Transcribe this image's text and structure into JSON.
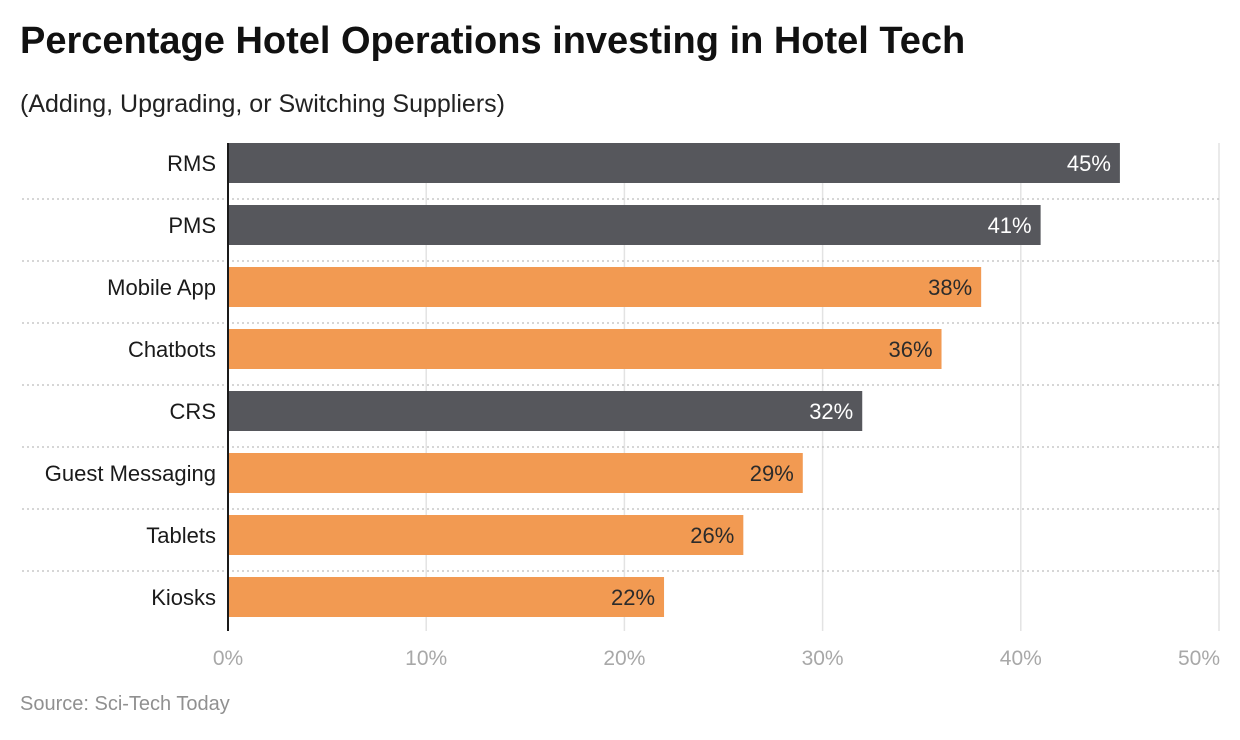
{
  "chart_data": {
    "type": "bar",
    "orientation": "horizontal",
    "title": "Percentage Hotel Operations investing in Hotel Tech",
    "subtitle": "(Adding, Upgrading, or Switching Suppliers)",
    "categories": [
      "RMS",
      "PMS",
      "Mobile App",
      "Chatbots",
      "CRS",
      "Guest Messaging",
      "Tablets",
      "Kiosks"
    ],
    "values": [
      45,
      41,
      38,
      36,
      32,
      29,
      26,
      22
    ],
    "value_labels": [
      "45%",
      "41%",
      "38%",
      "36%",
      "32%",
      "29%",
      "26%",
      "22%"
    ],
    "bar_colors": [
      "#56575c",
      "#56575c",
      "#f29a52",
      "#f29a52",
      "#56575c",
      "#f29a52",
      "#f29a52",
      "#f29a52"
    ],
    "label_colors": [
      "#ffffff",
      "#ffffff",
      "#2b2b2b",
      "#2b2b2b",
      "#ffffff",
      "#2b2b2b",
      "#2b2b2b",
      "#2b2b2b"
    ],
    "xlim": [
      0,
      50
    ],
    "xticks": [
      0,
      10,
      20,
      30,
      40,
      50
    ],
    "xtick_labels": [
      "0%",
      "10%",
      "20%",
      "30%",
      "40%",
      "50%"
    ],
    "xlabel": "",
    "ylabel": "",
    "grid": true,
    "source": "Source: Sci-Tech Today"
  }
}
